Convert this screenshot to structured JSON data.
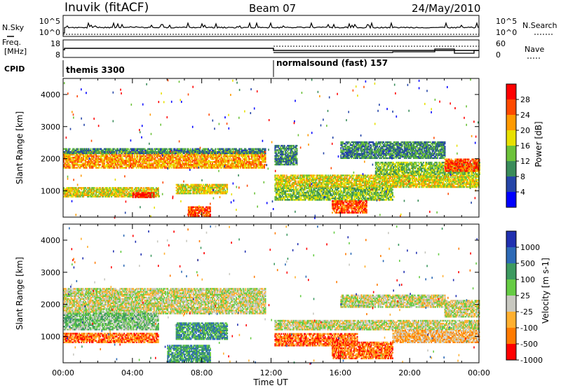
{
  "header": {
    "station": "Inuvik (fitACF)",
    "beam": "Beam 07",
    "date": "24/May/2010"
  },
  "nsky_panel": {
    "left_label": "N.Sky",
    "left_ticks": [
      "10^5",
      "10^0"
    ],
    "right_label": "N.Search",
    "right_ticks": [
      "10^5",
      "10^0"
    ]
  },
  "freq_panel": {
    "left_label_1": "Freq.",
    "left_label_2": "[MHz]",
    "left_ticks": [
      "18",
      "8"
    ],
    "right_label": "Nave",
    "right_ticks": [
      "60",
      "0"
    ]
  },
  "cpid": {
    "label": "CPID",
    "program_1": "themis 3300",
    "program_2": "normalsound (fast) 157"
  },
  "colors": {
    "power": [
      "#0000ff",
      "#2545a8",
      "#3a8c5a",
      "#6cc23a",
      "#e8e000",
      "#ff9a00",
      "#ff4a00",
      "#ff0000"
    ],
    "velocity": [
      "#2030b0",
      "#2d6ab6",
      "#3d9a60",
      "#66cc44",
      "#c8c8c0",
      "#ffb030",
      "#ff7a00",
      "#ff0000"
    ],
    "ground_scatter": "#c8c8c0"
  },
  "chart_data": [
    {
      "type": "heatmap",
      "title": "Power",
      "xlabel": "Time UT",
      "ylabel": "Slant Range [km]",
      "colorbar_label": "Power [dB]",
      "colorbar_ticks": [
        "4",
        "8",
        "12",
        "16",
        "20",
        "24",
        "28"
      ],
      "x_ticks": [
        "00:00",
        "04:00",
        "08:00",
        "12:00",
        "16:00",
        "20:00",
        "00:00"
      ],
      "y_ticks": [
        "1000",
        "2000",
        "3000",
        "4000"
      ],
      "xlim_hours": [
        0,
        24
      ],
      "ylim_km": [
        180,
        4500
      ],
      "regions": [
        {
          "t0": 0.0,
          "t1": 11.7,
          "r0": 1700,
          "r1": 2200,
          "level": 5
        },
        {
          "t0": 0.0,
          "t1": 11.7,
          "r0": 2150,
          "r1": 2300,
          "level": 2
        },
        {
          "t0": 0.0,
          "t1": 5.5,
          "r0": 800,
          "r1": 1100,
          "level": 4
        },
        {
          "t0": 4.0,
          "t1": 5.2,
          "r0": 780,
          "r1": 950,
          "level": 7
        },
        {
          "t0": 6.5,
          "t1": 9.5,
          "r0": 900,
          "r1": 1200,
          "level": 4
        },
        {
          "t0": 7.2,
          "t1": 8.5,
          "r0": 200,
          "r1": 500,
          "level": 6
        },
        {
          "t0": 12.2,
          "t1": 24.0,
          "r0": 1100,
          "r1": 1500,
          "level": 4
        },
        {
          "t0": 12.2,
          "t1": 19.0,
          "r0": 700,
          "r1": 1100,
          "level": 3
        },
        {
          "t0": 15.5,
          "t1": 17.5,
          "r0": 300,
          "r1": 700,
          "level": 6
        },
        {
          "t0": 18.0,
          "t1": 24.0,
          "r0": 1500,
          "r1": 1900,
          "level": 3
        },
        {
          "t0": 22.0,
          "t1": 24.0,
          "r0": 1600,
          "r1": 2000,
          "level": 6
        },
        {
          "t0": 12.2,
          "t1": 13.5,
          "r0": 1800,
          "r1": 2400,
          "level": 2
        },
        {
          "t0": 16.0,
          "t1": 22.0,
          "r0": 2000,
          "r1": 2500,
          "level": 2
        }
      ]
    },
    {
      "type": "heatmap",
      "title": "Velocity",
      "xlabel": "Time UT",
      "ylabel": "Slant Range [km]",
      "colorbar_label": "Velocity [m s-1]",
      "colorbar_ticks": [
        "1000",
        "500",
        "100",
        "25",
        "-25",
        "-100",
        "-500",
        "-1000"
      ],
      "x_ticks": [
        "00:00",
        "04:00",
        "08:00",
        "12:00",
        "16:00",
        "20:00",
        "00:00"
      ],
      "y_ticks": [
        "1000",
        "2000",
        "3000",
        "4000"
      ],
      "xlim_hours": [
        0,
        24
      ],
      "ylim_km": [
        180,
        4500
      ],
      "regions": [
        {
          "t0": 0.0,
          "t1": 11.7,
          "r0": 1700,
          "r1": 2500,
          "level": 4
        },
        {
          "t0": 0.0,
          "t1": 5.5,
          "r0": 800,
          "r1": 1100,
          "level": 6
        },
        {
          "t0": 0.0,
          "t1": 5.5,
          "r0": 1200,
          "r1": 1700,
          "level": 3
        },
        {
          "t0": 6.5,
          "t1": 9.5,
          "r0": 900,
          "r1": 1400,
          "level": 2
        },
        {
          "t0": 6.0,
          "t1": 8.5,
          "r0": 200,
          "r1": 700,
          "level": 2
        },
        {
          "t0": 12.2,
          "t1": 24.0,
          "r0": 1200,
          "r1": 1500,
          "level": 4
        },
        {
          "t0": 12.2,
          "t1": 17.0,
          "r0": 700,
          "r1": 1100,
          "level": 6
        },
        {
          "t0": 15.5,
          "t1": 19.0,
          "r0": 300,
          "r1": 800,
          "level": 6
        },
        {
          "t0": 19.0,
          "t1": 24.0,
          "r0": 800,
          "r1": 1200,
          "level": 5
        },
        {
          "t0": 16.0,
          "t1": 22.0,
          "r0": 1900,
          "r1": 2300,
          "level": 4
        },
        {
          "t0": 22.0,
          "t1": 24.0,
          "r0": 1600,
          "r1": 2100,
          "level": 4
        }
      ]
    }
  ]
}
